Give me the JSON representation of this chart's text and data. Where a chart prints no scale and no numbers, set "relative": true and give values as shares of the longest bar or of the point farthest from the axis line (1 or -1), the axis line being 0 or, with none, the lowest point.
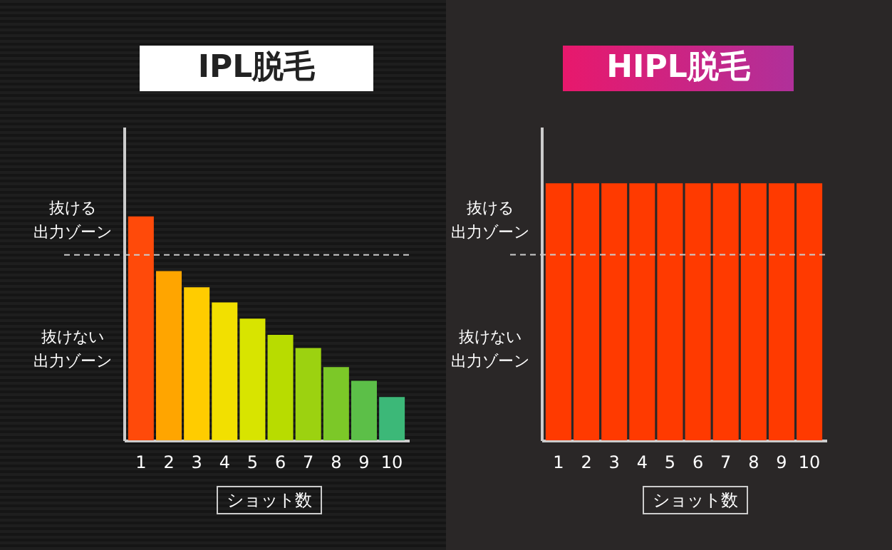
{
  "chart_data": [
    {
      "type": "bar",
      "title": "IPL脱毛",
      "xlabel": "ショット数",
      "relative": true,
      "categories": [
        "1",
        "2",
        "3",
        "4",
        "5",
        "6",
        "7",
        "8",
        "9",
        "10"
      ],
      "values": [
        1,
        0.756,
        0.683,
        0.616,
        0.543,
        0.471,
        0.412,
        0.327,
        0.266,
        0.193
      ],
      "colors": [
        "#ff4a0a",
        "#ffa500",
        "#ffcc00",
        "#f2e000",
        "#d8e400",
        "#b8dc00",
        "#9cd210",
        "#7cc828",
        "#5cbf48",
        "#3cb878"
      ],
      "ref_lines": [
        {
          "axis": "y",
          "value": 0.828,
          "color": "#cccccc",
          "line_style": "dashed"
        }
      ],
      "annotations": [
        "抜ける",
        "出力ゾーン",
        "抜けない",
        "出力ゾーン"
      ]
    },
    {
      "type": "bar",
      "title": "HIPL脱毛",
      "xlabel": "ショット数",
      "relative": true,
      "categories": [
        "1",
        "2",
        "3",
        "4",
        "5",
        "6",
        "7",
        "8",
        "9",
        "10"
      ],
      "values": [
        1,
        1,
        1,
        1,
        1,
        1,
        1,
        1,
        1,
        1
      ],
      "colors": [
        "#ff3a00",
        "#ff3a00",
        "#ff3a00",
        "#ff3a00",
        "#ff3a00",
        "#ff3a00",
        "#ff3a00",
        "#ff3a00",
        "#ff3a00",
        "#ff3a00"
      ],
      "ref_lines": [
        {
          "axis": "y",
          "value": 0.722,
          "color": "#cccccc",
          "line_style": "dashed"
        }
      ],
      "annotations": [
        "抜ける",
        "出力ゾーン",
        "抜けない",
        "出力ゾーン"
      ]
    }
  ]
}
